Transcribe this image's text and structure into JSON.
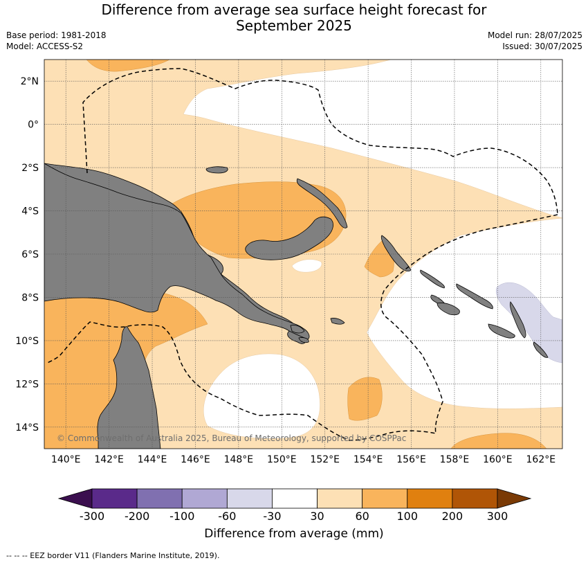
{
  "header": {
    "title_line1": "Difference from average sea surface height forecast for",
    "title_line2": "September 2025",
    "base_period": "Base period: 1981-2018",
    "model": "Model: ACCESS-S2",
    "model_run": "Model run: 28/07/2025",
    "issued": "Issued: 30/07/2025"
  },
  "map": {
    "lon_range": [
      139,
      163
    ],
    "lat_range": [
      -15,
      3
    ],
    "lon_ticks": [
      "140°E",
      "142°E",
      "144°E",
      "146°E",
      "148°E",
      "150°E",
      "152°E",
      "154°E",
      "156°E",
      "158°E",
      "160°E",
      "162°E"
    ],
    "lat_ticks": [
      "2°N",
      "0°",
      "2°S",
      "4°S",
      "6°S",
      "8°S",
      "10°S",
      "12°S",
      "14°S"
    ],
    "gridlines": true,
    "copyright": "© Commonwealth of Australia 2025, Bureau of Meteorology, supported by COSPPac",
    "land_color": "#808080",
    "eez_style": "dashed"
  },
  "colorbar": {
    "labels": [
      "-300",
      "-200",
      "-100",
      "-60",
      "-30",
      "30",
      "60",
      "100",
      "200",
      "300"
    ],
    "colors": [
      "#3b0f4f",
      "#5a2a8a",
      "#8070b0",
      "#b0a8d4",
      "#d8d8ea",
      "#ffffff",
      "#fde0b5",
      "#f9b45c",
      "#e0800f",
      "#b05506",
      "#7a3a05"
    ],
    "title": "Difference from average (mm)"
  },
  "footnote": "--  --  -- EEZ border V11 (Flanders Marine Institute, 2019)."
}
